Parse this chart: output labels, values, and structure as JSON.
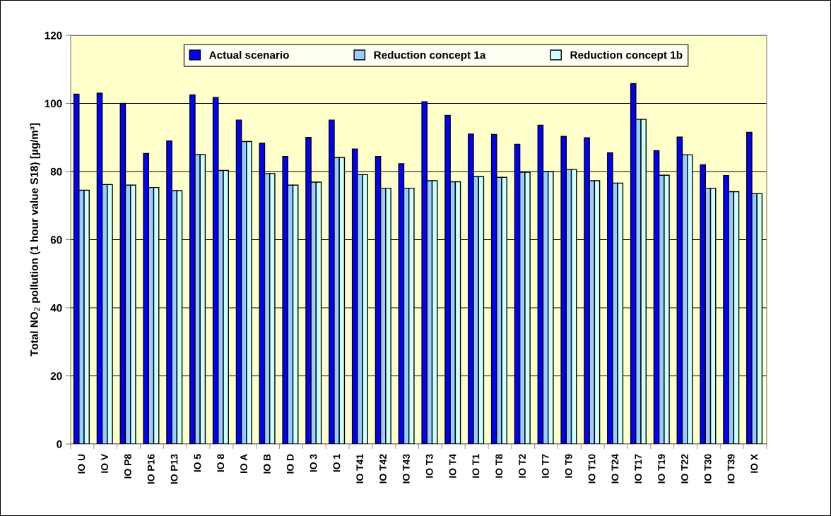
{
  "chart_data": {
    "type": "bar",
    "ylabel": "Total NO$_{2}$ pollution (1 hour value S18) [µg/m³]",
    "categories": [
      "IO U",
      "IO V",
      "IO P8",
      "IO P16",
      "IO P13",
      "IO 5",
      "IO 8",
      "IO A",
      "IO B",
      "IO D",
      "IO 3",
      "IO 1",
      "IO T41",
      "IO T42",
      "IO T43",
      "IO T3",
      "IO T4",
      "IO T1",
      "IO T8",
      "IO T2",
      "IO T7",
      "IO T9",
      "IO T10",
      "IO T24",
      "IO T17",
      "IO T19",
      "IO T22",
      "IO T30",
      "IO T39",
      "IO X"
    ],
    "series": [
      {
        "name": "Actual scenario",
        "color": "#0000ff",
        "values": [
          102.7,
          103,
          100,
          85.3,
          89,
          102.5,
          101.7,
          95.1,
          88.3,
          84.4,
          90,
          95.1,
          86.6,
          84.4,
          82.3,
          100.5,
          96.5,
          91,
          90.9,
          88,
          93.6,
          90.3,
          89.9,
          85.5,
          105.8,
          86.1,
          90.1,
          82,
          78.8,
          91.5
        ]
      },
      {
        "name": "Reduction concept 1a",
        "color": "#99ccff",
        "values": [
          74.5,
          76.2,
          76,
          75.3,
          74.4,
          85,
          80.3,
          88.8,
          79.4,
          76,
          76.9,
          84.1,
          79.1,
          75.1,
          75.1,
          77.3,
          77,
          78.5,
          78.3,
          79.8,
          80,
          80.6,
          77.3,
          76.6,
          95.3,
          78.9,
          84.9,
          75.1,
          74.1,
          73.5
        ]
      },
      {
        "name": "Reduction concept 1b",
        "color": "#ccffff",
        "values": [
          74.5,
          76.2,
          76,
          75.3,
          74.4,
          85,
          80.3,
          88.8,
          79.4,
          76,
          76.9,
          84.1,
          79.1,
          75.1,
          75.1,
          77.3,
          77,
          78.5,
          78.3,
          79.8,
          80,
          80.6,
          77.3,
          76.6,
          95.3,
          78.9,
          84.9,
          75.1,
          74.1,
          73.5
        ]
      }
    ],
    "ylim": [
      0,
      120
    ],
    "yticks": [
      0,
      20,
      40,
      60,
      80,
      100,
      120
    ],
    "grid": "y",
    "legend": "top"
  }
}
